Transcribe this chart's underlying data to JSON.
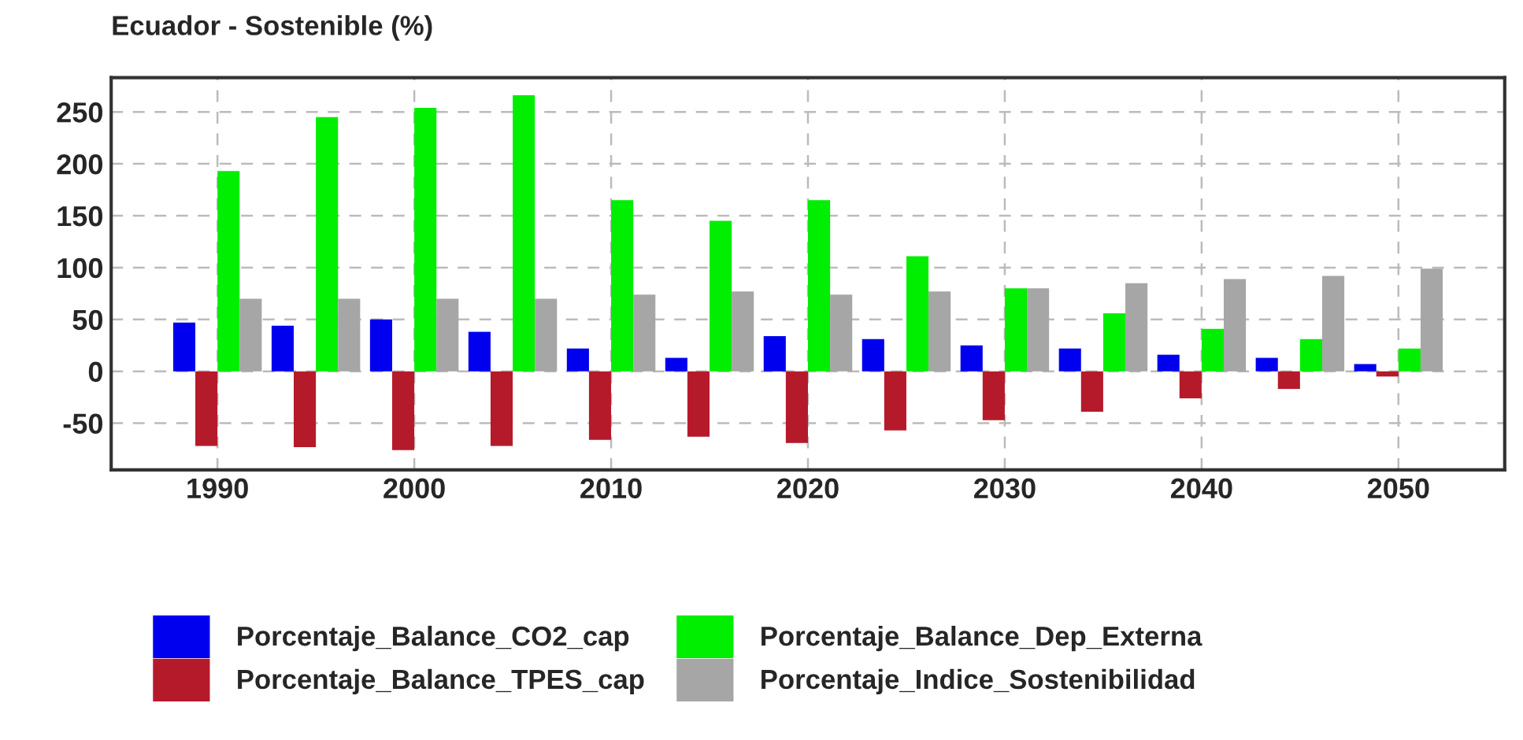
{
  "chart_data": {
    "type": "bar",
    "title": "Ecuador - Sostenible (%)",
    "x": [
      1990,
      1995,
      2000,
      2005,
      2010,
      2015,
      2020,
      2025,
      2030,
      2035,
      2040,
      2045,
      2050
    ],
    "series": [
      {
        "name": "Porcentaje_Balance_CO2_cap",
        "color": "#0000ee",
        "values": [
          47,
          44,
          50,
          38,
          22,
          13,
          34,
          31,
          25,
          22,
          16,
          13,
          7
        ]
      },
      {
        "name": "Porcentaje_Balance_TPES_cap",
        "color": "#b51a2b",
        "values": [
          -72,
          -73,
          -76,
          -72,
          -66,
          -63,
          -69,
          -57,
          -47,
          -39,
          -26,
          -17,
          -5
        ]
      },
      {
        "name": "Porcentaje_Balance_Dep_Externa",
        "color": "#00ee00",
        "values": [
          193,
          245,
          254,
          266,
          165,
          145,
          165,
          111,
          80,
          56,
          41,
          31,
          22
        ]
      },
      {
        "name": "Porcentaje_Indice_Sostenibilidad",
        "color": "#a6a6a6",
        "values": [
          70,
          70,
          70,
          70,
          74,
          77,
          74,
          77,
          80,
          85,
          89,
          92,
          99
        ]
      }
    ],
    "xlim": [
      1984.6,
      2055.4
    ],
    "xticks": [
      1990,
      2000,
      2010,
      2020,
      2030,
      2040,
      2050
    ],
    "ylim": [
      -95,
      283
    ],
    "yticks": [
      -50,
      0,
      50,
      100,
      150,
      200,
      250
    ],
    "grid": true,
    "legend": "bottom"
  }
}
